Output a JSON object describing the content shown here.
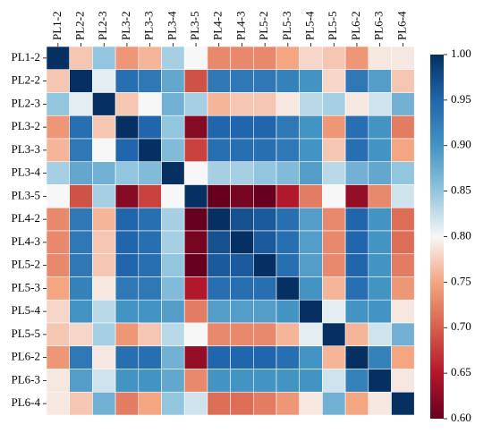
{
  "chart_data": {
    "type": "heatmap",
    "title": "",
    "xlabel": "",
    "ylabel": "",
    "labels": [
      "PL1-2",
      "PL2-2",
      "PL2-3",
      "PL3-2",
      "PL3-3",
      "PL3-4",
      "PL3-5",
      "PL4-2",
      "PL4-3",
      "PL5-2",
      "PL5-3",
      "PL5-4",
      "PL5-5",
      "PL6-2",
      "PL6-3",
      "PL6-4"
    ],
    "matrix": [
      [
        1.0,
        0.77,
        0.85,
        0.74,
        0.76,
        0.84,
        0.8,
        0.73,
        0.73,
        0.73,
        0.75,
        0.78,
        0.77,
        0.74,
        0.79,
        0.79
      ],
      [
        0.77,
        1.0,
        0.81,
        0.94,
        0.93,
        0.88,
        0.69,
        0.93,
        0.93,
        0.93,
        0.92,
        0.9,
        0.78,
        0.93,
        0.89,
        0.77
      ],
      [
        0.85,
        0.81,
        1.0,
        0.77,
        0.8,
        0.87,
        0.84,
        0.76,
        0.77,
        0.77,
        0.79,
        0.83,
        0.84,
        0.79,
        0.82,
        0.87
      ],
      [
        0.74,
        0.94,
        0.77,
        1.0,
        0.95,
        0.85,
        0.62,
        0.95,
        0.95,
        0.95,
        0.93,
        0.9,
        0.74,
        0.94,
        0.9,
        0.72
      ],
      [
        0.76,
        0.93,
        0.8,
        0.95,
        1.0,
        0.86,
        0.68,
        0.94,
        0.94,
        0.94,
        0.93,
        0.9,
        0.77,
        0.94,
        0.9,
        0.75
      ],
      [
        0.84,
        0.88,
        0.87,
        0.85,
        0.86,
        1.0,
        0.8,
        0.84,
        0.84,
        0.85,
        0.86,
        0.89,
        0.83,
        0.87,
        0.88,
        0.85
      ],
      [
        0.8,
        0.69,
        0.84,
        0.62,
        0.68,
        0.8,
        1.0,
        0.6,
        0.61,
        0.6,
        0.65,
        0.72,
        0.8,
        0.63,
        0.73,
        0.82
      ],
      [
        0.73,
        0.93,
        0.76,
        0.95,
        0.94,
        0.84,
        0.6,
        1.0,
        0.97,
        0.96,
        0.94,
        0.89,
        0.73,
        0.95,
        0.9,
        0.71
      ],
      [
        0.73,
        0.93,
        0.77,
        0.95,
        0.94,
        0.84,
        0.61,
        0.97,
        1.0,
        0.96,
        0.94,
        0.89,
        0.73,
        0.95,
        0.9,
        0.71
      ],
      [
        0.73,
        0.93,
        0.77,
        0.95,
        0.94,
        0.85,
        0.6,
        0.96,
        0.96,
        1.0,
        0.94,
        0.89,
        0.73,
        0.95,
        0.9,
        0.72
      ],
      [
        0.75,
        0.92,
        0.79,
        0.93,
        0.93,
        0.86,
        0.65,
        0.94,
        0.94,
        0.94,
        1.0,
        0.9,
        0.76,
        0.94,
        0.9,
        0.74
      ],
      [
        0.78,
        0.9,
        0.83,
        0.9,
        0.9,
        0.89,
        0.72,
        0.89,
        0.89,
        0.89,
        0.9,
        1.0,
        0.81,
        0.9,
        0.9,
        0.79
      ],
      [
        0.77,
        0.78,
        0.84,
        0.74,
        0.77,
        0.83,
        0.8,
        0.73,
        0.73,
        0.73,
        0.76,
        0.81,
        1.0,
        0.76,
        0.82,
        0.87
      ],
      [
        0.74,
        0.93,
        0.79,
        0.94,
        0.94,
        0.87,
        0.63,
        0.95,
        0.95,
        0.95,
        0.94,
        0.9,
        0.76,
        1.0,
        0.92,
        0.75
      ],
      [
        0.79,
        0.89,
        0.82,
        0.9,
        0.9,
        0.88,
        0.73,
        0.9,
        0.9,
        0.9,
        0.9,
        0.9,
        0.82,
        0.92,
        1.0,
        0.79
      ],
      [
        0.79,
        0.77,
        0.87,
        0.72,
        0.75,
        0.85,
        0.82,
        0.71,
        0.71,
        0.72,
        0.74,
        0.79,
        0.87,
        0.75,
        0.79,
        1.0
      ]
    ],
    "colorbar": {
      "min": 0.6,
      "max": 1.0,
      "ticks": [
        "0.60",
        "0.65",
        "0.70",
        "0.75",
        "0.80",
        "0.85",
        "0.90",
        "0.95",
        "1.00"
      ],
      "colormap": "RdBu",
      "stops": [
        {
          "v": 0.6,
          "color": "#67001f"
        },
        {
          "v": 0.65,
          "color": "#b2182b"
        },
        {
          "v": 0.7,
          "color": "#d6604d"
        },
        {
          "v": 0.75,
          "color": "#f4a582"
        },
        {
          "v": 0.8,
          "color": "#f7f7f7"
        },
        {
          "v": 0.85,
          "color": "#92c5de"
        },
        {
          "v": 0.9,
          "color": "#4393c3"
        },
        {
          "v": 0.95,
          "color": "#2166ac"
        },
        {
          "v": 1.0,
          "color": "#053061"
        }
      ]
    },
    "grid": false,
    "x_tick_position": "top",
    "legend": "colorbar-right"
  }
}
